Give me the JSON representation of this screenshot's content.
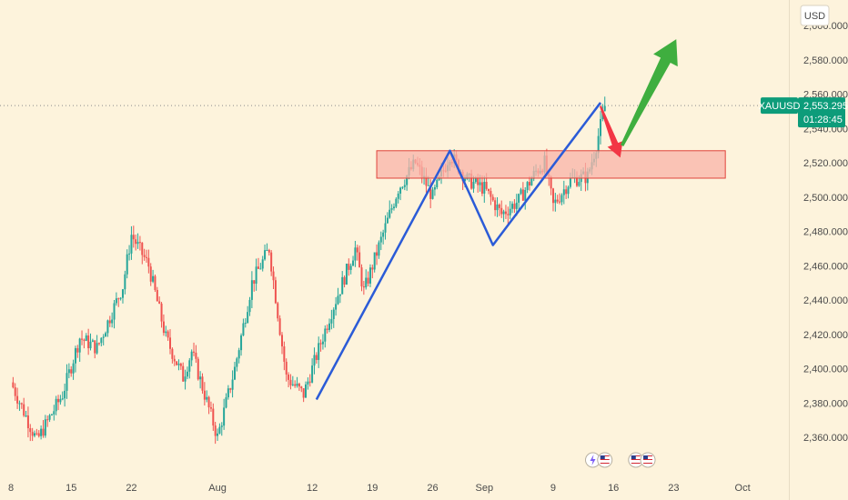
{
  "chart_data": {
    "type": "candlestick",
    "symbol": "XAUUSD",
    "currency": "USD",
    "last_price": 2553.295,
    "last_price_label": "2,553.295",
    "countdown": "01:28:45",
    "ylim": [
      2350,
      2625
    ],
    "y_ticks": [
      "2,360.000",
      "2,380.000",
      "2,400.000",
      "2,420.000",
      "2,440.000",
      "2,460.000",
      "2,480.000",
      "2,500.000",
      "2,520.000",
      "2,540.000",
      "2,560.000",
      "2,580.000",
      "2,600.000"
    ],
    "y_tick_values": [
      2360,
      2380,
      2400,
      2420,
      2440,
      2460,
      2480,
      2500,
      2520,
      2540,
      2560,
      2580,
      2600
    ],
    "x_ticks": [
      "8",
      "15",
      "22",
      "Aug",
      "12",
      "19",
      "26",
      "Sep",
      "9",
      "16",
      "23",
      "Oct"
    ],
    "x_tick_days": [
      0,
      7,
      14,
      24,
      35,
      42,
      49,
      55,
      63,
      70,
      77,
      85
    ],
    "x_range_days": [
      -0.5,
      87.5
    ],
    "path_points": [
      {
        "day": 0,
        "close": 2392
      },
      {
        "day": 3,
        "close": 2358
      },
      {
        "day": 6,
        "close": 2385
      },
      {
        "day": 8,
        "close": 2418
      },
      {
        "day": 10,
        "close": 2412
      },
      {
        "day": 13,
        "close": 2448
      },
      {
        "day": 14,
        "close": 2478
      },
      {
        "day": 16,
        "close": 2460
      },
      {
        "day": 18,
        "close": 2418
      },
      {
        "day": 20,
        "close": 2395
      },
      {
        "day": 21,
        "close": 2410
      },
      {
        "day": 24,
        "close": 2360
      },
      {
        "day": 26,
        "close": 2400
      },
      {
        "day": 28,
        "close": 2450
      },
      {
        "day": 30,
        "close": 2470
      },
      {
        "day": 32,
        "close": 2395
      },
      {
        "day": 34,
        "close": 2385
      },
      {
        "day": 37,
        "close": 2430
      },
      {
        "day": 40,
        "close": 2470
      },
      {
        "day": 41,
        "close": 2445
      },
      {
        "day": 43,
        "close": 2475
      },
      {
        "day": 45,
        "close": 2505
      },
      {
        "day": 47,
        "close": 2520
      },
      {
        "day": 49,
        "close": 2500
      },
      {
        "day": 51,
        "close": 2525
      },
      {
        "day": 53,
        "close": 2510
      },
      {
        "day": 55,
        "close": 2505
      },
      {
        "day": 57,
        "close": 2490
      },
      {
        "day": 59,
        "close": 2498
      },
      {
        "day": 61,
        "close": 2515
      },
      {
        "day": 62,
        "close": 2520
      },
      {
        "day": 63,
        "close": 2495
      },
      {
        "day": 65,
        "close": 2510
      },
      {
        "day": 67,
        "close": 2512
      },
      {
        "day": 68,
        "close": 2530
      },
      {
        "day": 69,
        "close": 2553
      }
    ],
    "drawings": {
      "zigzag": [
        {
          "day": 35.5,
          "price": 2382
        },
        {
          "day": 51.0,
          "price": 2527
        },
        {
          "day": 56.0,
          "price": 2472
        },
        {
          "day": 68.5,
          "price": 2555
        }
      ],
      "red_arrow": [
        {
          "day": 68.5,
          "price": 2553
        },
        {
          "day": 70.8,
          "price": 2523
        }
      ],
      "green_arrow": [
        {
          "day": 71.0,
          "price": 2530
        },
        {
          "day": 77.3,
          "price": 2592
        }
      ],
      "resistance_zone": {
        "day_start": 42.5,
        "day_end": 83.0,
        "price_low": 2511,
        "price_high": 2527
      }
    },
    "title": "",
    "xlabel": "",
    "ylabel": "",
    "grid": false,
    "legend": "none"
  },
  "colors": {
    "background": "#fdf3dc",
    "up": "#26a69a",
    "down": "#ef5350",
    "zigzag": "#2b5bd7",
    "red_arrow": "#f23645",
    "green_arrow": "#3fae3f",
    "zone_fill": "#f8b3a8",
    "zone_border": "#e0433b",
    "badge": "#0d9c7a",
    "axis_text": "#4a4a4a"
  },
  "events": [
    "lightning-icon",
    "us-flag-icon",
    "us-flag-icon",
    "us-flag-icon"
  ]
}
